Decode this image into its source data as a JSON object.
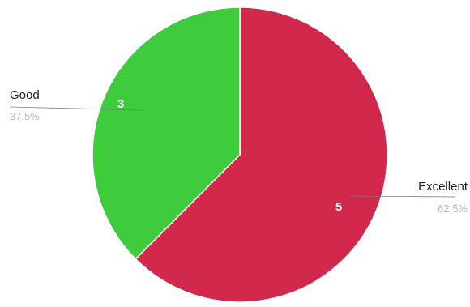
{
  "chart_data": {
    "type": "pie",
    "start_angle_deg": 0,
    "direction": "clockwise",
    "slices": [
      {
        "label": "Excellent",
        "value": 5,
        "display_value": "5",
        "percent_label": "62.5%",
        "color": "#d2284c"
      },
      {
        "label": "Good",
        "value": 3,
        "display_value": "3",
        "percent_label": "37.5%",
        "color": "#3ecb3c"
      }
    ]
  }
}
